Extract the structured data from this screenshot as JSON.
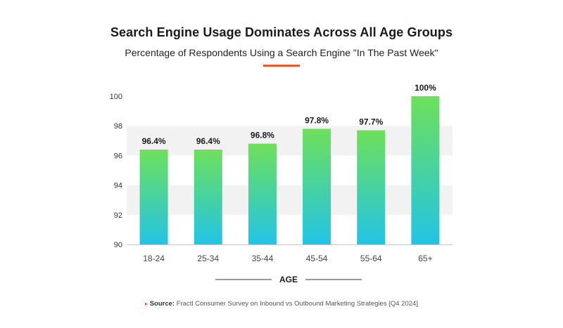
{
  "chart_data": {
    "type": "bar",
    "title": "Search Engine Usage Dominates Across All Age Groups",
    "subtitle": "Percentage of Respondents Using a Search Engine \"In The Past Week\"",
    "xlabel": "AGE",
    "ylabel": "",
    "categories": [
      "18-24",
      "25-34",
      "35-44",
      "45-54",
      "55-64",
      "65+"
    ],
    "values": [
      96.4,
      96.4,
      96.8,
      97.8,
      97.7,
      100
    ],
    "value_labels": [
      "96.4%",
      "96.4%",
      "96.8%",
      "97.8%",
      "97.7%",
      "100%"
    ],
    "ylim": [
      90,
      100
    ],
    "yticks": [
      90,
      92,
      94,
      96,
      98,
      100
    ],
    "grid": false,
    "legend": "none",
    "colors": {
      "bar_top": "#6ee05a",
      "bar_bottom": "#22c4e6",
      "band": "#f2f2f2",
      "axis": "#c8c8c8",
      "accent": "#e85a2c"
    }
  },
  "source": {
    "marker": "▸",
    "label": "Source:",
    "text": "Fractl Consumer Survey on Inbound vs Outbound Marketing Strategies [Q4 2024]"
  }
}
